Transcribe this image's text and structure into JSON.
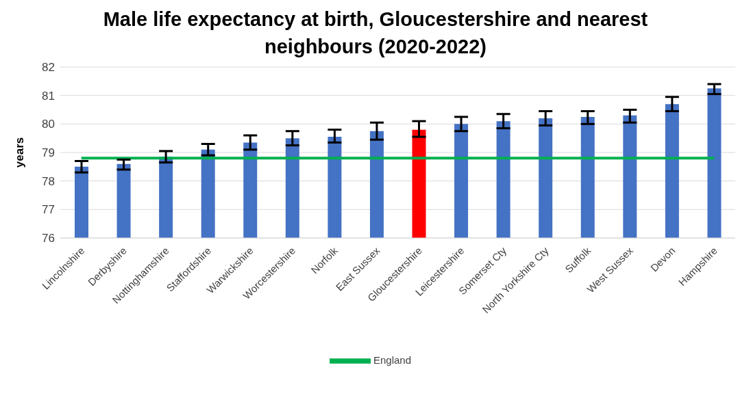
{
  "chart_data": {
    "type": "bar",
    "title": "Male life expectancy at birth, Gloucestershire and nearest neighbours (2020-2022)",
    "ylabel": "years",
    "categories": [
      "Lincolnshire",
      "Derbyshire",
      "Nottinghamshire",
      "Staffordshire",
      "Warwickshire",
      "Worcestershire",
      "Norfolk",
      "East Sussex",
      "Gloucestershire",
      "Leicestershire",
      "Somerset Cty",
      "North Yorkshire Cty",
      "Suffolk",
      "West Sussex",
      "Devon",
      "Hampshire"
    ],
    "series": [
      {
        "colors": [
          "#4472c4",
          "#4472c4",
          "#4472c4",
          "#4472c4",
          "#4472c4",
          "#4472c4",
          "#4472c4",
          "#4472c4",
          "#ff0000",
          "#4472c4",
          "#4472c4",
          "#4472c4",
          "#4472c4",
          "#4472c4",
          "#4472c4",
          "#4472c4"
        ],
        "values": [
          78.5,
          78.6,
          78.85,
          79.1,
          79.35,
          79.5,
          79.55,
          79.75,
          79.8,
          80.0,
          80.1,
          80.2,
          80.25,
          80.3,
          80.7,
          81.25
        ],
        "errors": [
          [
            78.3,
            78.7
          ],
          [
            78.4,
            78.75
          ],
          [
            78.65,
            79.05
          ],
          [
            78.9,
            79.3
          ],
          [
            79.1,
            79.6
          ],
          [
            79.25,
            79.75
          ],
          [
            79.35,
            79.8
          ],
          [
            79.45,
            80.05
          ],
          [
            79.55,
            80.1
          ],
          [
            79.75,
            80.25
          ],
          [
            79.85,
            80.35
          ],
          [
            79.95,
            80.45
          ],
          [
            80.0,
            80.45
          ],
          [
            80.05,
            80.5
          ],
          [
            80.45,
            80.95
          ],
          [
            81.05,
            81.4
          ]
        ]
      },
      {
        "type": "line",
        "name": "England",
        "color": "#00b050",
        "values": [
          78.8,
          78.8,
          78.8,
          78.8,
          78.8,
          78.8,
          78.8,
          78.8,
          78.8,
          78.8,
          78.8,
          78.8,
          78.8,
          78.8,
          78.8,
          78.8
        ]
      }
    ],
    "ylim": [
      76,
      82
    ],
    "yticks": [
      76,
      77,
      78,
      79,
      80,
      81,
      82
    ],
    "grid": "y",
    "legend": "bottom",
    "marker": "none"
  }
}
